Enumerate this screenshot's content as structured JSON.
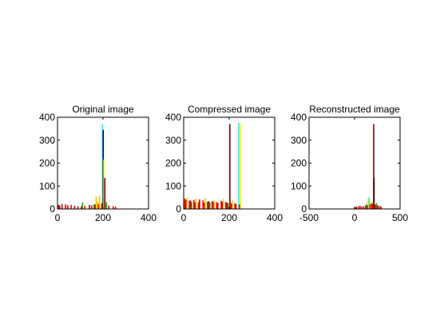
{
  "chart_data": [
    {
      "type": "bar",
      "title": "Original image",
      "xlim": [
        0,
        400
      ],
      "ylim": [
        0,
        400
      ],
      "xticks": [
        0,
        200,
        400
      ],
      "yticks": [
        0,
        100,
        200,
        300,
        400
      ],
      "xticklabels": [
        "0",
        "200",
        "400"
      ],
      "yticklabels": [
        "0",
        "100",
        "200",
        "300",
        "400"
      ],
      "grid": false,
      "series": [
        {
          "color": "#00ffff",
          "x": [
            198
          ],
          "values": [
            370
          ]
        },
        {
          "color": "#000080",
          "x": [
            201
          ],
          "values": [
            345
          ]
        },
        {
          "color": "#ffff00",
          "x": [
            204
          ],
          "values": [
            215
          ]
        },
        {
          "color": "#800000",
          "x": [
            208
          ],
          "values": [
            135
          ]
        },
        {
          "color": "#ffcc00",
          "x": [
            170,
            175,
            185
          ],
          "values": [
            55,
            35,
            60
          ]
        },
        {
          "color": "#ff0000",
          "x": [
            10,
            35,
            60,
            90,
            120,
            150,
            180,
            215,
            245
          ],
          "values": [
            15,
            20,
            18,
            12,
            14,
            16,
            22,
            18,
            12
          ]
        },
        {
          "color": "#cc0000",
          "x": [
            5,
            20,
            45,
            75,
            105,
            140,
            165,
            195,
            225,
            255
          ],
          "values": [
            18,
            22,
            16,
            14,
            12,
            18,
            20,
            25,
            15,
            10
          ]
        },
        {
          "color": "#00aa00",
          "x": [
            110,
            160,
            215
          ],
          "values": [
            28,
            20,
            30
          ]
        }
      ]
    },
    {
      "type": "bar",
      "title": "Compressed image",
      "xlim": [
        0,
        400
      ],
      "ylim": [
        0,
        400
      ],
      "xticks": [
        0,
        200,
        400
      ],
      "yticks": [
        0,
        100,
        200,
        300,
        400
      ],
      "xticklabels": [
        "0",
        "200",
        "400"
      ],
      "yticklabels": [
        "0",
        "100",
        "200",
        "300",
        "400"
      ],
      "grid": false,
      "series": [
        {
          "color": "#800000",
          "x": [
            203
          ],
          "values": [
            370
          ]
        },
        {
          "color": "#00ffff",
          "x": [
            242
          ],
          "values": [
            375
          ]
        },
        {
          "color": "#ffff00",
          "x": [
            250
          ],
          "values": [
            375
          ]
        },
        {
          "color": "#ff0000",
          "x": [
            5,
            25,
            45,
            65,
            85,
            105,
            125,
            145,
            165,
            185,
            205,
            225,
            245
          ],
          "values": [
            45,
            35,
            40,
            30,
            38,
            32,
            35,
            30,
            36,
            30,
            28,
            25,
            20
          ]
        },
        {
          "color": "#cc0000",
          "x": [
            10,
            30,
            50,
            70,
            90,
            110,
            130,
            150,
            170,
            190,
            210,
            230
          ],
          "values": [
            40,
            38,
            30,
            42,
            28,
            34,
            30,
            26,
            32,
            28,
            24,
            22
          ]
        },
        {
          "color": "#ffcc00",
          "x": [
            15,
            55,
            95,
            135,
            175,
            215
          ],
          "values": [
            50,
            45,
            48,
            40,
            44,
            38
          ]
        },
        {
          "color": "#00aa00",
          "x": [
            35,
            115,
            195
          ],
          "values": [
            30,
            28,
            26
          ]
        }
      ]
    },
    {
      "type": "bar",
      "title": "Reconstructed image",
      "xlim": [
        -500,
        500
      ],
      "ylim": [
        0,
        400
      ],
      "xticks": [
        -500,
        0,
        500
      ],
      "yticks": [
        0,
        100,
        200,
        300,
        400
      ],
      "xticklabels": [
        "-500",
        "0",
        "500"
      ],
      "yticklabels": [
        "0",
        "100",
        "200",
        "300",
        "400"
      ],
      "grid": false,
      "series": [
        {
          "color": "#800000",
          "x": [
            210
          ],
          "values": [
            370
          ]
        },
        {
          "color": "#550000",
          "x": [
            214
          ],
          "values": [
            135
          ]
        },
        {
          "color": "#00ffff",
          "x": [
            160
          ],
          "values": [
            50
          ]
        },
        {
          "color": "#ffcc00",
          "x": [
            150,
            180
          ],
          "values": [
            45,
            35
          ]
        },
        {
          "color": "#ff0000",
          "x": [
            5,
            40,
            80,
            120,
            170,
            200,
            230,
            260,
            290
          ],
          "values": [
            8,
            12,
            10,
            15,
            20,
            22,
            18,
            14,
            10
          ]
        },
        {
          "color": "#cc0000",
          "x": [
            20,
            60,
            100,
            140,
            190,
            220,
            250,
            280
          ],
          "values": [
            10,
            14,
            12,
            16,
            24,
            20,
            16,
            12
          ]
        },
        {
          "color": "#00aa00",
          "x": [
            130,
            240
          ],
          "values": [
            20,
            25
          ]
        }
      ]
    }
  ]
}
